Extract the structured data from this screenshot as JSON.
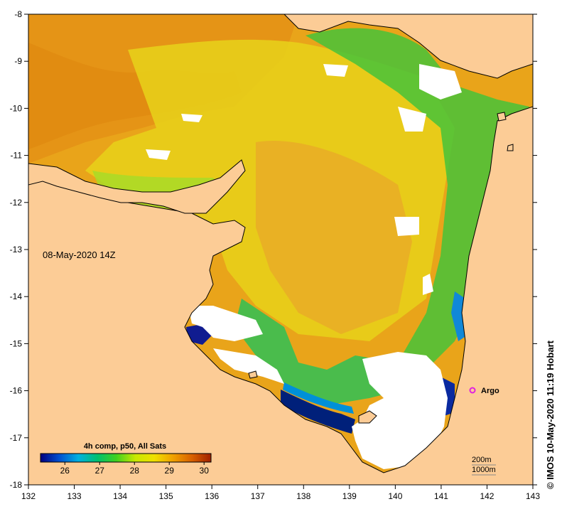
{
  "map": {
    "timestamp": "08-May-2020 14Z",
    "credit": "© IMOS 10-May-2020 11:19 Hobart",
    "colorbar": {
      "title": "4h comp, p50, All Sats",
      "ticks": [
        "26",
        "27",
        "28",
        "29",
        "30"
      ],
      "min": 25.3,
      "max": 30.2,
      "colors": [
        "#000080",
        "#0050d0",
        "#00b0e0",
        "#00c070",
        "#40d020",
        "#c8e800",
        "#f0e000",
        "#f0a000",
        "#d86000",
        "#a02000"
      ]
    },
    "axes": {
      "lon_ticks": [
        "132",
        "133",
        "134",
        "135",
        "136",
        "137",
        "138",
        "139",
        "140",
        "141",
        "142",
        "143"
      ],
      "lat_ticks": [
        "-8",
        "-9",
        "-10",
        "-11",
        "-12",
        "-13",
        "-14",
        "-15",
        "-16",
        "-17",
        "-18"
      ]
    },
    "marker": {
      "label": "Argo",
      "lon": 141.7,
      "lat": -16.0,
      "color": "#e020e0"
    },
    "depth_legend": {
      "line1": "200m",
      "line2": "1000m"
    },
    "colors": {
      "land": "#fccc96",
      "no_data": "#ffffff",
      "coast": "#000000"
    }
  }
}
